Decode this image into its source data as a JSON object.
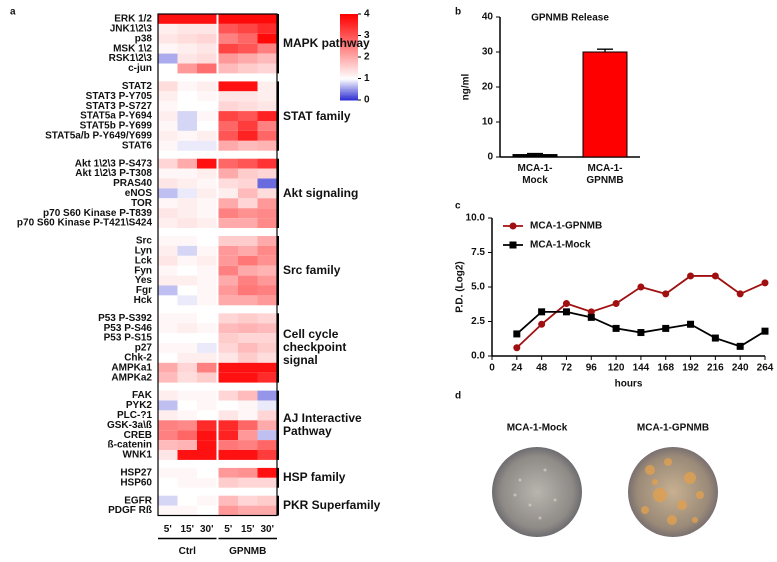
{
  "chart_data": [
    {
      "type": "heatmap",
      "panel_label": "a",
      "columns": [
        "5'",
        "15'",
        "30'",
        "5'",
        "15'",
        "30'"
      ],
      "column_groups": [
        "Ctrl",
        "GPNMB"
      ],
      "clim": [
        0,
        4
      ],
      "cticks": [
        0,
        1,
        2,
        3,
        4
      ],
      "colorscale": [
        [
          0,
          "#2b2bd2"
        ],
        [
          1,
          "#ffffff"
        ],
        [
          4,
          "#ff0000"
        ]
      ],
      "groups": [
        {
          "label": "MAPK pathway",
          "rows": [
            "ERK 1/2",
            "JNK1\\2\\3",
            "p38",
            "MSK 1\\2",
            "RSK1\\2\\3",
            "c-jun"
          ],
          "values": [
            [
              3.8,
              3.8,
              3.8,
              3.9,
              3.9,
              3.9
            ],
            [
              1.2,
              1.3,
              1.3,
              3.0,
              3.2,
              3.5
            ],
            [
              1.3,
              1.4,
              1.5,
              2.5,
              2.8,
              3.9
            ],
            [
              1.1,
              1.2,
              1.3,
              3.2,
              3.0,
              2.5
            ],
            [
              0.6,
              1.3,
              1.4,
              2.2,
              2.0,
              1.8
            ],
            [
              1.0,
              2.2,
              2.7,
              1.8,
              1.6,
              1.5
            ]
          ]
        },
        {
          "label": "STAT family",
          "rows": [
            "STAT2",
            "STAT3 P-Y705",
            "STAT3 P-S727",
            "STAT5a P-Y694",
            "STAT5b P-Y699",
            "STAT5a/b P-Y649/Y699",
            "STAT6"
          ],
          "values": [
            [
              1.4,
              1.1,
              1.2,
              3.8,
              3.8,
              1.2
            ],
            [
              1.2,
              1.0,
              1.1,
              1.3,
              1.3,
              1.2
            ],
            [
              1.1,
              1.0,
              1.0,
              1.5,
              1.4,
              1.3
            ],
            [
              1.2,
              0.8,
              1.1,
              3.2,
              3.0,
              3.6
            ],
            [
              1.1,
              0.8,
              1.0,
              2.8,
              3.3,
              2.5
            ],
            [
              1.2,
              1.1,
              1.2,
              3.0,
              3.6,
              2.8
            ],
            [
              1.1,
              0.9,
              0.9,
              2.0,
              1.8,
              1.9
            ]
          ]
        },
        {
          "label": "Akt signaling",
          "rows": [
            "Akt 1\\2\\3 P-S473",
            "Akt 1\\2\\3 P-T308",
            "PRAS40",
            "eNOS",
            "TOR",
            "p70 S60 Kinase P-T839",
            "p70 S60 Kinase P-T421\\S424"
          ],
          "values": [
            [
              1.5,
              2.0,
              3.8,
              2.8,
              3.0,
              3.4
            ],
            [
              1.1,
              1.1,
              1.2,
              2.0,
              1.6,
              1.5
            ],
            [
              1.3,
              1.2,
              1.1,
              1.4,
              1.5,
              0.3
            ],
            [
              0.7,
              0.9,
              1.2,
              1.2,
              1.8,
              1.4
            ],
            [
              1.1,
              1.2,
              1.1,
              2.0,
              1.5,
              2.2
            ],
            [
              1.3,
              1.2,
              1.1,
              2.5,
              2.3,
              2.4
            ],
            [
              1.2,
              1.3,
              1.2,
              2.0,
              2.0,
              2.4
            ]
          ]
        },
        {
          "label": "Src family",
          "rows": [
            "Src",
            "Lyn",
            "Lck",
            "Fyn",
            "Yes",
            "Fgr",
            "Hck"
          ],
          "values": [
            [
              1.1,
              1.1,
              1.0,
              1.6,
              1.6,
              2.0
            ],
            [
              1.2,
              0.8,
              1.1,
              2.2,
              2.0,
              2.4
            ],
            [
              1.3,
              1.1,
              1.2,
              2.2,
              2.6,
              2.3
            ],
            [
              1.1,
              1.0,
              1.1,
              2.5,
              2.0,
              1.9
            ],
            [
              1.2,
              1.2,
              1.1,
              2.0,
              2.5,
              2.2
            ],
            [
              0.7,
              1.0,
              1.1,
              2.2,
              2.6,
              2.5
            ],
            [
              1.0,
              0.9,
              1.1,
              2.0,
              2.0,
              2.2
            ]
          ]
        },
        {
          "label": "Cell cycle checkpoint signal",
          "rows": [
            "P53 P-S392",
            "P53 P-S46",
            "P53 P-S15",
            "p27",
            "Chk-2",
            "AMPKa1",
            "AMPKa2"
          ],
          "values": [
            [
              1.1,
              1.1,
              1.0,
              1.5,
              1.6,
              1.5
            ],
            [
              1.1,
              1.2,
              1.1,
              1.8,
              1.9,
              1.8
            ],
            [
              1.0,
              1.0,
              1.0,
              1.6,
              1.5,
              1.5
            ],
            [
              1.1,
              1.1,
              0.9,
              1.5,
              1.8,
              1.6
            ],
            [
              1.0,
              1.2,
              1.2,
              1.3,
              1.6,
              1.4
            ],
            [
              2.0,
              1.5,
              2.5,
              3.8,
              3.8,
              3.8
            ],
            [
              1.8,
              1.4,
              1.6,
              3.8,
              3.8,
              3.5
            ]
          ]
        },
        {
          "label": "AJ Interactive Pathway",
          "rows": [
            "FAK",
            "PYK2",
            "PLC-?1",
            "GSK-3a\\ß",
            "CREB",
            "ß-catenin",
            "WNK1"
          ],
          "values": [
            [
              1.2,
              1.1,
              1.1,
              1.5,
              1.8,
              0.5
            ],
            [
              0.7,
              1.0,
              1.1,
              1.0,
              1.1,
              0.9
            ],
            [
              1.2,
              1.1,
              1.0,
              1.3,
              1.1,
              1.5
            ],
            [
              2.5,
              2.4,
              3.5,
              3.5,
              2.8,
              2.0
            ],
            [
              2.5,
              2.8,
              3.8,
              3.6,
              2.2,
              0.7
            ],
            [
              1.8,
              1.9,
              3.8,
              2.6,
              2.5,
              2.8
            ],
            [
              1.3,
              3.8,
              3.8,
              3.8,
              3.8,
              3.3
            ]
          ]
        },
        {
          "label": "HSP family",
          "rows": [
            "HSP27",
            "HSP60"
          ],
          "values": [
            [
              1.1,
              1.1,
              1.0,
              2.2,
              2.3,
              3.8
            ],
            [
              1.0,
              1.1,
              1.1,
              1.6,
              1.5,
              1.5
            ]
          ]
        },
        {
          "label": "PKR Superfamily",
          "rows": [
            "EGFR",
            "PDGF Rß"
          ],
          "values": [
            [
              0.8,
              1.0,
              1.1,
              1.8,
              1.5,
              1.6
            ],
            [
              1.1,
              1.1,
              1.0,
              2.2,
              2.0,
              2.0
            ]
          ]
        }
      ]
    },
    {
      "type": "bar",
      "panel_label": "b",
      "title": "GPNMB Release",
      "ylabel": "ng/ml",
      "categories": [
        "MCA-1-Mock",
        "MCA-1-GPNMB"
      ],
      "values": [
        0.7,
        30
      ],
      "errors": [
        0.3,
        0.8
      ],
      "colors": [
        "#000000",
        "#ff0000"
      ],
      "ylim": [
        0,
        40
      ],
      "yticks": [
        0,
        10,
        20,
        30,
        40
      ]
    },
    {
      "type": "line",
      "panel_label": "c",
      "xlabel": "hours",
      "ylabel": "P.D. (Log2)",
      "x": [
        24,
        48,
        72,
        96,
        120,
        144,
        168,
        192,
        216,
        240,
        264
      ],
      "series": [
        {
          "name": "MCA-1-GPNMB",
          "color": "#a01010",
          "marker": "circle",
          "values": [
            0.6,
            2.3,
            3.8,
            3.2,
            3.8,
            5.0,
            4.5,
            5.8,
            5.8,
            4.5,
            5.3
          ]
        },
        {
          "name": "MCA-1-Mock",
          "color": "#000000",
          "marker": "square",
          "values": [
            1.6,
            3.2,
            3.2,
            2.8,
            2.0,
            1.7,
            2.0,
            2.3,
            1.3,
            0.7,
            1.8
          ]
        }
      ],
      "xlim": [
        0,
        264
      ],
      "xticks": [
        0,
        24,
        48,
        72,
        96,
        120,
        144,
        168,
        192,
        216,
        240,
        264
      ],
      "ylim": [
        0,
        10
      ],
      "yticks": [
        {
          "value": 0,
          "label": "0.0"
        },
        {
          "value": 2.5,
          "label": "2.5"
        },
        {
          "value": 5,
          "label": "5.0"
        },
        {
          "value": 7.5,
          "label": "7.5"
        },
        {
          "value": 10,
          "label": "10.0"
        }
      ],
      "legend": "upper-left"
    }
  ],
  "image_panel": {
    "panel_label": "d",
    "labels": [
      "MCA-1-Mock",
      "MCA-1-GPNMB"
    ]
  }
}
